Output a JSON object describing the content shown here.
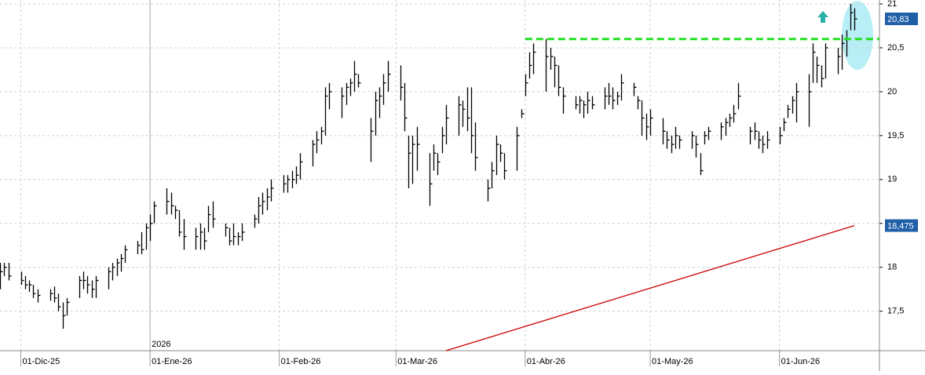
{
  "chart_data": {
    "type": "ohlc",
    "color": "#000000",
    "x": [
      "2025-11-26",
      "2025-11-27",
      "2025-11-28",
      "2025-12-01",
      "2025-12-02",
      "2025-12-03",
      "2025-12-04",
      "2025-12-05",
      "2025-12-08",
      "2025-12-09",
      "2025-12-10",
      "2025-12-11",
      "2025-12-12",
      "2025-12-15",
      "2025-12-16",
      "2025-12-17",
      "2025-12-18",
      "2025-12-19",
      "2025-12-22",
      "2025-12-23",
      "2025-12-24",
      "2025-12-25",
      "2025-12-26",
      "2025-12-29",
      "2025-12-30",
      "2025-12-31",
      "2026-01-01",
      "2026-01-02",
      "2026-01-05",
      "2026-01-06",
      "2026-01-07",
      "2026-01-08",
      "2026-01-09",
      "2026-01-12",
      "2026-01-13",
      "2026-01-14",
      "2026-01-15",
      "2026-01-16",
      "2026-01-19",
      "2026-01-20",
      "2026-01-21",
      "2026-01-22",
      "2026-01-23",
      "2026-01-26",
      "2026-01-27",
      "2026-01-28",
      "2026-01-29",
      "2026-01-30",
      "2026-02-02",
      "2026-02-03",
      "2026-02-04",
      "2026-02-05",
      "2026-02-06",
      "2026-02-09",
      "2026-02-10",
      "2026-02-11",
      "2026-02-12",
      "2026-02-13",
      "2026-02-16",
      "2026-02-17",
      "2026-02-18",
      "2026-02-19",
      "2026-02-20",
      "2026-02-23",
      "2026-02-24",
      "2026-02-25",
      "2026-02-26",
      "2026-02-27",
      "2026-03-02",
      "2026-03-03",
      "2026-03-04",
      "2026-03-05",
      "2026-03-06",
      "2026-03-09",
      "2026-03-10",
      "2026-03-11",
      "2026-03-12",
      "2026-03-13",
      "2026-03-16",
      "2026-03-17",
      "2026-03-18",
      "2026-03-19",
      "2026-03-20",
      "2026-03-23",
      "2026-03-24",
      "2026-03-25",
      "2026-03-26",
      "2026-03-27",
      "2026-03-30",
      "2026-03-31",
      "2026-04-01",
      "2026-04-02",
      "2026-04-03",
      "2026-04-06",
      "2026-04-07",
      "2026-04-08",
      "2026-04-09",
      "2026-04-10",
      "2026-04-13",
      "2026-04-14",
      "2026-04-15",
      "2026-04-16",
      "2026-04-17",
      "2026-04-20",
      "2026-04-21",
      "2026-04-22",
      "2026-04-23",
      "2026-04-24",
      "2026-04-27",
      "2026-04-28",
      "2026-04-29",
      "2026-04-30",
      "2026-05-01",
      "2026-05-04",
      "2026-05-05",
      "2026-05-06",
      "2026-05-07",
      "2026-05-08",
      "2026-05-11",
      "2026-05-12",
      "2026-05-13",
      "2026-05-14",
      "2026-05-15",
      "2026-05-18",
      "2026-05-19",
      "2026-05-20",
      "2026-05-21",
      "2026-05-22",
      "2026-05-25",
      "2026-05-26",
      "2026-05-27",
      "2026-05-28",
      "2026-05-29",
      "2026-06-01",
      "2026-06-02",
      "2026-06-03",
      "2026-06-04",
      "2026-06-05",
      "2026-06-08",
      "2026-06-09",
      "2026-06-10",
      "2026-06-11",
      "2026-06-12",
      "2026-06-15",
      "2026-06-16",
      "2026-06-17",
      "2026-06-18",
      "2026-06-19"
    ],
    "high": [
      18.05,
      18.05,
      18.05,
      17.95,
      17.9,
      17.85,
      17.8,
      17.75,
      17.75,
      17.78,
      17.7,
      17.6,
      17.65,
      17.9,
      17.95,
      17.9,
      17.85,
      17.9,
      18.0,
      18.05,
      18.1,
      18.15,
      18.25,
      18.3,
      18.4,
      18.5,
      18.6,
      18.75,
      18.9,
      18.85,
      18.7,
      18.65,
      18.55,
      18.45,
      18.5,
      18.45,
      18.7,
      18.75,
      18.5,
      18.45,
      18.5,
      18.4,
      18.5,
      18.6,
      18.8,
      18.85,
      18.9,
      19.0,
      19.05,
      19.05,
      19.1,
      19.15,
      19.3,
      19.45,
      19.55,
      19.6,
      20.05,
      20.1,
      20.05,
      20.1,
      20.15,
      20.35,
      20.2,
      19.7,
      20.0,
      20.05,
      20.2,
      20.35,
      20.3,
      20.1,
      19.5,
      19.5,
      19.6,
      19.3,
      19.4,
      19.3,
      19.6,
      19.85,
      19.95,
      19.9,
      20.05,
      20.05,
      19.65,
      19.0,
      19.2,
      19.5,
      19.4,
      19.3,
      19.6,
      19.8,
      20.2,
      20.45,
      20.55,
      20.6,
      20.5,
      20.4,
      20.3,
      20.05,
      19.95,
      19.95,
      19.9,
      20.0,
      19.95,
      20.05,
      20.1,
      20.05,
      20.0,
      20.2,
      20.1,
      19.95,
      19.9,
      19.75,
      19.8,
      19.7,
      19.55,
      19.5,
      19.6,
      19.5,
      19.55,
      19.5,
      19.3,
      19.55,
      19.6,
      19.65,
      19.7,
      19.75,
      19.85,
      20.1,
      19.6,
      19.65,
      19.55,
      19.5,
      19.55,
      19.6,
      19.7,
      19.85,
      19.95,
      20.1,
      20.2,
      20.55,
      20.4,
      20.3,
      20.55,
      20.5,
      20.65,
      20.7,
      21.0,
      20.95
    ],
    "low": [
      17.75,
      17.9,
      17.85,
      17.8,
      17.75,
      17.72,
      17.65,
      17.6,
      17.62,
      17.6,
      17.5,
      17.3,
      17.45,
      17.65,
      17.75,
      17.7,
      17.65,
      17.65,
      17.75,
      17.85,
      17.9,
      17.95,
      18.05,
      18.15,
      18.15,
      18.2,
      18.3,
      18.5,
      18.6,
      18.6,
      18.55,
      18.35,
      18.2,
      18.2,
      18.2,
      18.2,
      18.4,
      18.45,
      18.35,
      18.25,
      18.25,
      18.25,
      18.3,
      18.45,
      18.5,
      18.6,
      18.65,
      18.75,
      18.85,
      18.85,
      18.9,
      18.95,
      19.0,
      19.15,
      19.3,
      19.4,
      19.5,
      19.8,
      19.7,
      19.85,
      19.95,
      20.0,
      20.05,
      19.2,
      19.5,
      19.7,
      19.85,
      20.0,
      19.9,
      19.55,
      18.9,
      18.95,
      19.1,
      18.7,
      19.1,
      19.05,
      19.3,
      19.4,
      19.5,
      19.6,
      19.55,
      19.3,
      19.1,
      18.75,
      18.9,
      19.05,
      19.2,
      19.0,
      19.1,
      19.7,
      19.95,
      20.15,
      20.2,
      20.0,
      20.25,
      20.05,
      19.95,
      19.75,
      19.8,
      19.75,
      19.7,
      19.75,
      19.8,
      19.8,
      19.85,
      19.8,
      19.85,
      19.9,
      19.95,
      19.8,
      19.5,
      19.45,
      19.5,
      19.4,
      19.35,
      19.3,
      19.35,
      19.35,
      19.35,
      19.25,
      19.05,
      19.4,
      19.45,
      19.45,
      19.5,
      19.6,
      19.65,
      19.8,
      19.4,
      19.45,
      19.35,
      19.3,
      19.35,
      19.4,
      19.55,
      19.7,
      19.75,
      19.65,
      19.6,
      20.1,
      20.1,
      20.05,
      20.15,
      20.2,
      20.25,
      20.4,
      20.7,
      20.7
    ],
    "close": [
      17.95,
      18.0,
      17.9,
      17.85,
      17.8,
      17.8,
      17.7,
      17.68,
      17.7,
      17.65,
      17.55,
      17.45,
      17.6,
      17.85,
      17.85,
      17.8,
      17.75,
      17.85,
      17.95,
      18.0,
      18.05,
      18.1,
      18.2,
      18.25,
      18.2,
      18.45,
      18.5,
      18.7,
      18.75,
      18.7,
      18.65,
      18.4,
      18.35,
      18.35,
      18.4,
      18.3,
      18.6,
      18.55,
      18.45,
      18.3,
      18.35,
      18.35,
      18.4,
      18.55,
      18.7,
      18.75,
      18.8,
      18.9,
      18.95,
      19.0,
      19.0,
      19.05,
      19.2,
      19.4,
      19.45,
      19.55,
      19.95,
      20.0,
      19.95,
      20.05,
      20.1,
      20.2,
      20.1,
      19.55,
      19.9,
      19.95,
      20.1,
      20.2,
      20.05,
      19.7,
      19.3,
      19.4,
      19.4,
      18.95,
      19.3,
      19.2,
      19.5,
      19.7,
      19.85,
      19.8,
      19.7,
      19.5,
      19.25,
      18.9,
      19.1,
      19.4,
      19.3,
      19.1,
      19.5,
      19.75,
      20.1,
      20.3,
      20.45,
      20.4,
      20.4,
      20.3,
      20.05,
      19.95,
      19.85,
      19.9,
      19.85,
      19.9,
      19.85,
      19.95,
      19.95,
      19.9,
      19.95,
      20.1,
      20.05,
      19.9,
      19.7,
      19.6,
      19.7,
      19.55,
      19.45,
      19.4,
      19.5,
      19.45,
      19.5,
      19.4,
      19.1,
      19.5,
      19.55,
      19.6,
      19.65,
      19.7,
      19.75,
      19.95,
      19.55,
      19.55,
      19.45,
      19.4,
      19.45,
      19.5,
      19.65,
      19.8,
      19.9,
      20.0,
      20.0,
      20.45,
      20.3,
      20.15,
      20.5,
      20.4,
      20.55,
      20.6,
      20.9,
      20.83
    ],
    "xlim": [
      "2025-11-26",
      "2026-06-25"
    ],
    "xticks": [
      {
        "value": "2025-12-01",
        "label": "01-Dic-25"
      },
      {
        "value": "2026-01-01",
        "label": "01-Ene-26"
      },
      {
        "value": "2026-02-01",
        "label": "01-Feb-26"
      },
      {
        "value": "2026-03-01",
        "label": "01-Mar-26"
      },
      {
        "value": "2026-04-01",
        "label": "01-Abr-26"
      },
      {
        "value": "2026-05-01",
        "label": "01-May-26"
      },
      {
        "value": "2026-06-01",
        "label": "01-Jun-26"
      }
    ],
    "ylim": [
      17.05,
      21
    ],
    "yticks": [
      {
        "value": 17.5,
        "label": "17,5"
      },
      18,
      {
        "value": 18.5,
        "label": "18,5"
      },
      19,
      {
        "value": 19.5,
        "label": "19,5"
      },
      20,
      {
        "value": 20.5,
        "label": "20,5"
      },
      21
    ],
    "grid": true,
    "year_marker": {
      "value": "2026-01-01",
      "label": "2026"
    },
    "last_price": {
      "value": 20.83,
      "label": "20,83"
    },
    "resistance": {
      "value": 20.6,
      "start": "2026-04-01",
      "color": "#22e022"
    },
    "moving_average": {
      "x": [
        "2026-03-13",
        "2026-06-19"
      ],
      "values": [
        17.05,
        18.475
      ],
      "value_labels": [
        "",
        "18,475"
      ],
      "color": "#cc0000"
    }
  }
}
